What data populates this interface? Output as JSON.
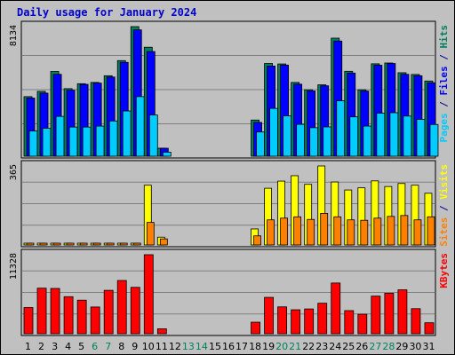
{
  "chart_data": {
    "type": "bar",
    "title": "Daily usage for January 2024",
    "categories": [
      "1",
      "2",
      "3",
      "4",
      "5",
      "6",
      "7",
      "8",
      "9",
      "10",
      "11",
      "12",
      "13",
      "14",
      "15",
      "16",
      "17",
      "18",
      "19",
      "20",
      "21",
      "22",
      "23",
      "24",
      "25",
      "26",
      "27",
      "28",
      "29",
      "30",
      "31"
    ],
    "weekend_days": [
      "6",
      "7",
      "13",
      "14",
      "20",
      "21",
      "27",
      "28"
    ],
    "panels": [
      {
        "id": "hits-files-pages",
        "max_label": "8134",
        "ymax": 8134,
        "side_label": [
          "Pages",
          " / ",
          "Files",
          " / ",
          "Hits"
        ],
        "side_colors": [
          "#00ccff",
          "#000099",
          "#0000ff",
          "#000099",
          "#00805c"
        ],
        "series": [
          {
            "name": "Hits",
            "color": "#00805c",
            "values": [
              3740,
              4070,
              5320,
              4240,
              4550,
              4630,
              5050,
              6000,
              8134,
              6840,
              500,
              0,
              0,
              0,
              0,
              0,
              0,
              2270,
              5820,
              5790,
              4630,
              4170,
              4480,
              7410,
              5330,
              4170,
              5800,
              5850,
              5240,
              5130,
              4720
            ]
          },
          {
            "name": "Files",
            "color": "#0000ff",
            "values": [
              3650,
              3960,
              5140,
              4140,
              4510,
              4590,
              4970,
              5890,
              7930,
              6570,
              500,
              0,
              0,
              0,
              0,
              0,
              0,
              2120,
              5660,
              5720,
              4520,
              4100,
              4420,
              7230,
              5220,
              4090,
              5710,
              5820,
              5140,
              5050,
              4610
            ]
          },
          {
            "name": "Pages",
            "color": "#00ccff",
            "values": [
              1580,
              1750,
              2500,
              1830,
              1830,
              1890,
              2210,
              2840,
              3740,
              2590,
              250,
              0,
              0,
              0,
              0,
              0,
              0,
              1520,
              3000,
              2530,
              2000,
              1790,
              1840,
              3480,
              2470,
              1890,
              2700,
              2730,
              2520,
              2310,
              1990
            ]
          }
        ]
      },
      {
        "id": "visits-sites",
        "max_label": "365",
        "ymax": 365,
        "side_label": [
          "Sites",
          " / ",
          "Visits"
        ],
        "side_colors": [
          "#ff8000",
          "#000099",
          "#ffff00"
        ],
        "series": [
          {
            "name": "Visits",
            "color": "#ffff00",
            "values": [
              8,
              8,
              8,
              8,
              8,
              8,
              8,
              8,
              8,
              276,
              36,
              0,
              0,
              0,
              0,
              0,
              0,
              74,
              262,
              295,
              320,
              280,
              365,
              291,
              254,
              264,
              296,
              270,
              284,
              276,
              239
            ]
          },
          {
            "name": "Sites",
            "color": "#ff8000",
            "values": [
              8,
              8,
              8,
              8,
              8,
              8,
              8,
              8,
              8,
              104,
              28,
              0,
              0,
              0,
              0,
              0,
              0,
              42,
              116,
              124,
              130,
              118,
              146,
              130,
              116,
              114,
              124,
              132,
              136,
              116,
              130
            ]
          }
        ]
      },
      {
        "id": "kbytes",
        "max_label": "11328",
        "ymax": 11328,
        "side_label": [
          "KBytes"
        ],
        "side_colors": [
          "#ff0000"
        ],
        "series": [
          {
            "name": "KBytes",
            "color": "#ff0000",
            "values": [
              3750,
              6530,
              6490,
              5310,
              4810,
              3830,
              6220,
              7630,
              6650,
              11328,
              700,
              0,
              0,
              0,
              0,
              0,
              0,
              1650,
              5210,
              3850,
              3430,
              3550,
              4370,
              7270,
              3310,
              2790,
              5390,
              5800,
              6290,
              3590,
              1570
            ]
          }
        ]
      }
    ]
  }
}
